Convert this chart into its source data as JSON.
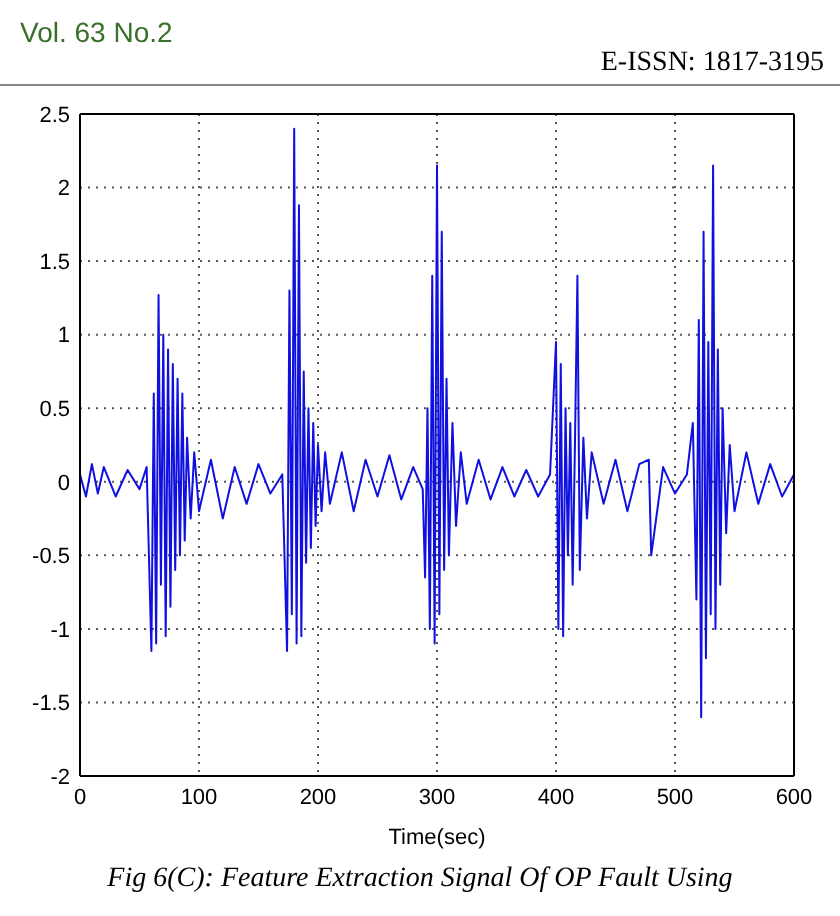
{
  "chart_data": {
    "type": "line",
    "xlabel": "Time(sec)",
    "annotations": [
      "Vol. 63 No.2",
      "E-ISSN: 1817-3195",
      "Fig 6(C): Feature Extraction Signal Of OP Fault Using"
    ],
    "x": [
      0,
      5,
      10,
      15,
      20,
      30,
      40,
      50,
      56,
      60,
      62,
      64,
      66,
      68,
      70,
      72,
      74,
      76,
      78,
      80,
      82,
      84,
      86,
      88,
      90,
      93,
      96,
      100,
      110,
      120,
      130,
      140,
      150,
      160,
      170,
      174,
      176,
      178,
      180,
      182,
      184,
      186,
      188,
      190,
      192,
      194,
      196,
      198,
      200,
      203,
      206,
      210,
      220,
      230,
      240,
      250,
      260,
      270,
      280,
      288,
      290,
      292,
      294,
      296,
      298,
      300,
      302,
      304,
      306,
      308,
      310,
      313,
      316,
      320,
      325,
      335,
      345,
      355,
      365,
      375,
      385,
      395,
      400,
      402,
      404,
      406,
      408,
      410,
      412,
      414,
      416,
      418,
      420,
      423,
      426,
      430,
      440,
      450,
      460,
      470,
      478,
      480,
      490,
      500,
      510,
      515,
      518,
      520,
      522,
      524,
      526,
      528,
      530,
      532,
      534,
      536,
      538,
      540,
      543,
      546,
      550,
      560,
      570,
      580,
      590,
      600
    ],
    "series": [
      {
        "color": "#1010e0",
        "values": [
          0.05,
          -0.1,
          0.12,
          -0.08,
          0.1,
          -0.1,
          0.08,
          -0.05,
          0.1,
          -1.15,
          0.6,
          -1.1,
          1.27,
          -0.7,
          1.0,
          -1.05,
          0.9,
          -0.85,
          0.8,
          -0.6,
          0.7,
          -0.5,
          0.6,
          -0.4,
          0.3,
          -0.25,
          0.2,
          -0.2,
          0.15,
          -0.25,
          0.1,
          -0.15,
          0.12,
          -0.08,
          0.05,
          -1.15,
          1.3,
          -0.9,
          2.4,
          -1.1,
          1.88,
          -1.05,
          0.75,
          -0.55,
          0.5,
          -0.45,
          0.4,
          -0.3,
          0.25,
          -0.2,
          0.2,
          -0.15,
          0.2,
          -0.2,
          0.15,
          -0.1,
          0.18,
          -0.12,
          0.1,
          -0.05,
          -0.65,
          0.5,
          -1.0,
          1.4,
          -1.1,
          2.15,
          -0.9,
          1.7,
          -0.6,
          0.7,
          -0.5,
          0.4,
          -0.3,
          0.2,
          -0.15,
          0.15,
          -0.12,
          0.1,
          -0.1,
          0.08,
          -0.1,
          0.05,
          0.95,
          -1.0,
          0.8,
          -1.05,
          0.5,
          -0.5,
          0.4,
          -0.7,
          0.3,
          1.4,
          -0.6,
          0.3,
          -0.25,
          0.2,
          -0.15,
          0.15,
          -0.2,
          0.12,
          0.15,
          -0.5,
          0.1,
          -0.08,
          0.05,
          0.4,
          -0.8,
          1.1,
          -1.6,
          1.7,
          -1.2,
          0.95,
          -0.9,
          2.15,
          -1.0,
          0.9,
          -0.7,
          0.5,
          -0.35,
          0.25,
          -0.2,
          0.2,
          -0.15,
          0.12,
          -0.1,
          0.05
        ]
      }
    ],
    "xlim": [
      0,
      600
    ],
    "xticks": [
      0,
      100,
      200,
      300,
      400,
      500,
      600
    ],
    "ylim": [
      -2,
      2.5
    ],
    "yticks": [
      -2,
      -1.5,
      -1,
      -0.5,
      0,
      0.5,
      1,
      1.5,
      2,
      2.5
    ],
    "grid": true,
    "marker": "none",
    "line_style": "solid"
  }
}
